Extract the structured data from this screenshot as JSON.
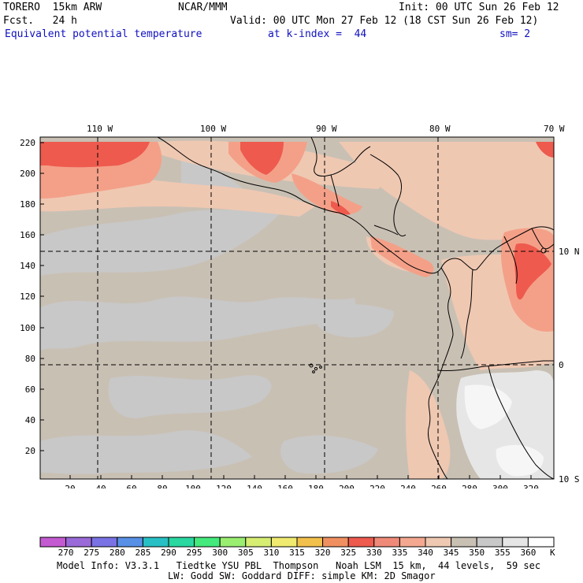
{
  "header": {
    "model": "TORERO  15km ARW",
    "center": "NCAR/MMM",
    "init": "Init: 00 UTC Sun 26 Feb 12",
    "fcst": "Fcst.   24 h",
    "valid": "Valid: 00 UTC Mon 27 Feb 12 (18 CST Sun 26 Feb 12)",
    "field": "Equivalent potential temperature",
    "level": "at k-index =  44",
    "smooth": "sm= 2"
  },
  "map": {
    "lon_labels": [
      "110 W",
      "100 W",
      "90 W",
      "80 W",
      "70 W"
    ],
    "lat_labels": [
      "10 N",
      "0",
      "10 S"
    ],
    "y_ticks": [
      "220",
      "200",
      "180",
      "160",
      "140",
      "120",
      "100",
      "80",
      "60",
      "40",
      "20"
    ],
    "x_ticks": [
      "20",
      "40",
      "60",
      "80",
      "100",
      "120",
      "140",
      "160",
      "180",
      "200",
      "220",
      "240",
      "260",
      "280",
      "300",
      "320"
    ],
    "colors": {
      "base": "#c9c0b4",
      "gray": "#c8c8c8",
      "light_gray": "#e6e6e6",
      "white": "#f6f6f6",
      "tan": "#efc8b2",
      "salmon": "#f4a088",
      "red": "#ee5a4e"
    }
  },
  "colorbar": {
    "labels": [
      "270",
      "275",
      "280",
      "285",
      "290",
      "295",
      "300",
      "305",
      "310",
      "315",
      "320",
      "325",
      "330",
      "335",
      "340",
      "345",
      "350",
      "355",
      "360"
    ],
    "unit": "K",
    "colors": [
      "#c45ad2",
      "#9a6ad8",
      "#7a72e4",
      "#5890e6",
      "#28c0c4",
      "#2ad8a0",
      "#44ea7c",
      "#9aee70",
      "#d6ee72",
      "#f0ea70",
      "#f2c04c",
      "#f09060",
      "#ee5a4e",
      "#f08a78",
      "#f4a890",
      "#efc8b2",
      "#c9c0b4",
      "#c8c8c8",
      "#e6e6e6",
      "#ffffff"
    ]
  },
  "footer": {
    "line1": "Model Info: V3.3.1   Tiedtke YSU PBL  Thompson   Noah LSM  15 km,  44 levels,  59 sec",
    "line2": "LW: Godd SW: Goddard DIFF: simple KM: 2D Smagor"
  }
}
